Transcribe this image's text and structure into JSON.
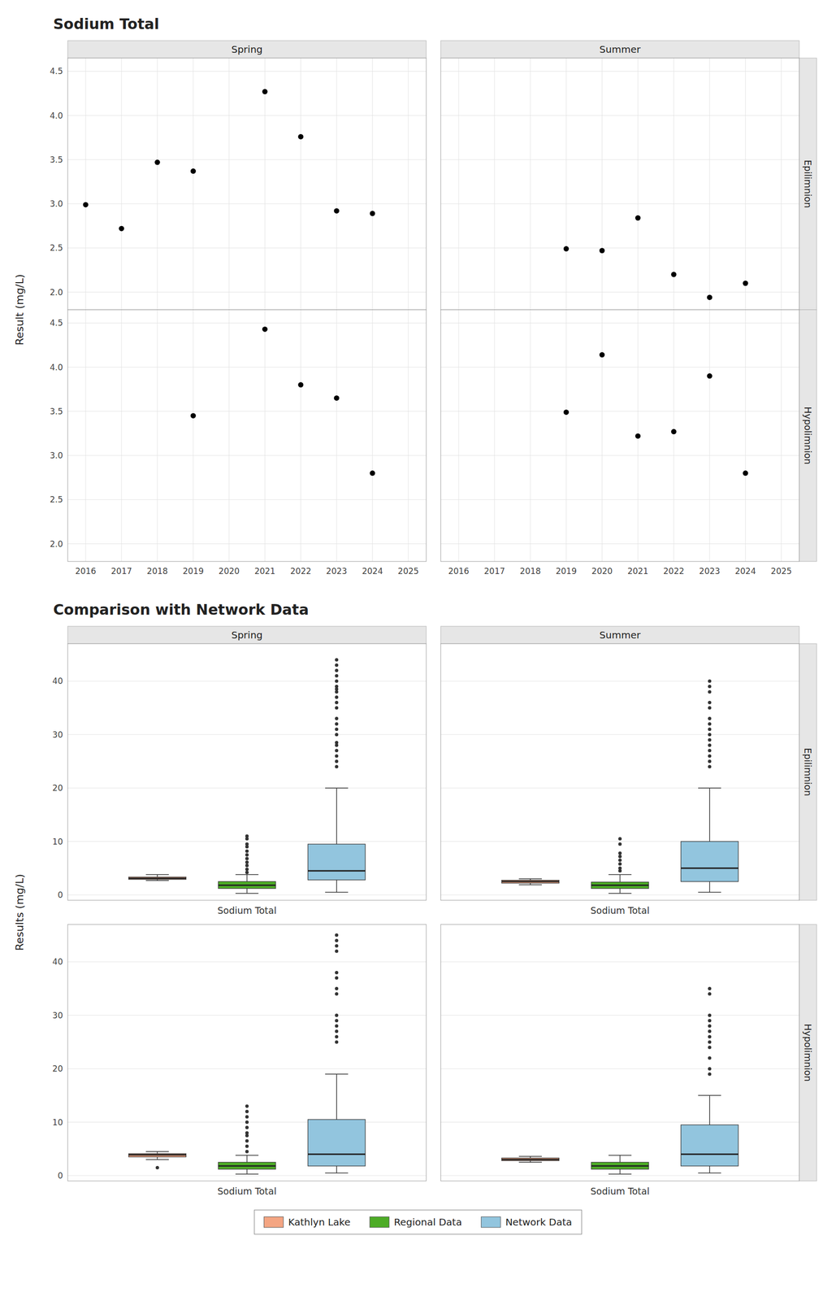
{
  "chart_data": [
    {
      "type": "scatter",
      "title": "Sodium Total",
      "y_label": "Result (mg/L)",
      "color": "black",
      "grid": true,
      "xlim": [
        2015.5,
        2025.5
      ],
      "ylim": [
        1.8,
        4.65
      ],
      "xticks": [
        2016,
        2017,
        2018,
        2019,
        2020,
        2021,
        2022,
        2023,
        2024,
        2025
      ],
      "yticks": [
        {
          "value": 2.0,
          "label": "2.0"
        },
        2.5,
        {
          "value": 3.0,
          "label": "3.0"
        },
        3.5,
        {
          "value": 4.0,
          "label": "4.0"
        },
        4.5
      ],
      "columns": [
        "Spring",
        "Summer"
      ],
      "rows": [
        "Epilimnion",
        "Hypolimnion"
      ],
      "panels": [
        {
          "x": [
            2016,
            2017,
            2018,
            2019,
            2021,
            2022,
            2023,
            2024
          ],
          "values": [
            2.99,
            2.72,
            3.47,
            3.37,
            4.27,
            3.76,
            2.92,
            2.89
          ]
        },
        {
          "x": [
            2019,
            2020,
            2021,
            2022,
            2023,
            2024
          ],
          "values": [
            2.49,
            2.47,
            2.84,
            2.2,
            1.94,
            2.1
          ]
        },
        {
          "x": [
            2019,
            2021,
            2022,
            2023,
            2024
          ],
          "values": [
            3.45,
            4.43,
            3.8,
            3.65,
            2.8
          ]
        },
        {
          "x": [
            2019,
            2020,
            2021,
            2022,
            2023,
            2024
          ],
          "values": [
            3.49,
            4.14,
            3.22,
            3.27,
            3.9,
            2.8
          ]
        }
      ]
    },
    {
      "type": "box",
      "title": "Comparison with Network Data",
      "y_label": "Results (mg/L)",
      "grid": true,
      "legend": "bottom",
      "categories": [
        "Sodium Total"
      ],
      "ylim": [
        -1,
        47
      ],
      "yticks": [
        0,
        10,
        20,
        30,
        40
      ],
      "columns": [
        "Spring",
        "Summer"
      ],
      "rows": [
        "Epilimnion",
        "Hypolimnion"
      ],
      "series": [
        {
          "name": "Kathlyn Lake",
          "color": "#F4A582"
        },
        {
          "name": "Regional Data",
          "color": "#4DAC26"
        },
        {
          "name": "Network Data",
          "color": "#92C5DE"
        }
      ],
      "panels": [
        {
          "series": [
            {
              "median": 3.1,
              "q1": 2.9,
              "q3": 3.35,
              "whislo": 2.7,
              "whishi": 3.8,
              "fliers": []
            },
            {
              "median": 1.8,
              "q1": 1.2,
              "q3": 2.5,
              "whislo": 0.3,
              "whishi": 3.8,
              "fliers": [
                4.2,
                4.8,
                5.5,
                6.1,
                6.8,
                7.5,
                8.2,
                9.0,
                9.5,
                10.5,
                11.0
              ]
            },
            {
              "median": 4.5,
              "q1": 2.8,
              "q3": 9.5,
              "whislo": 0.5,
              "whishi": 20.0,
              "fliers": [
                24.0,
                25.0,
                26.0,
                27.0,
                28.0,
                28.5,
                30.0,
                31.0,
                32.0,
                33.0,
                35.0,
                36.0,
                37.0,
                38.0,
                38.5,
                39.0,
                40.0,
                41.0,
                42.0,
                43.0,
                44.0
              ]
            }
          ]
        },
        {
          "series": [
            {
              "median": 2.5,
              "q1": 2.2,
              "q3": 2.75,
              "whislo": 1.9,
              "whishi": 3.0,
              "fliers": []
            },
            {
              "median": 1.8,
              "q1": 1.2,
              "q3": 2.4,
              "whislo": 0.3,
              "whishi": 3.8,
              "fliers": [
                4.5,
                5.0,
                5.8,
                6.5,
                7.2,
                7.8,
                9.5,
                10.5
              ]
            },
            {
              "median": 5.0,
              "q1": 2.5,
              "q3": 10.0,
              "whislo": 0.5,
              "whishi": 20.0,
              "fliers": [
                24.0,
                25.0,
                26.0,
                27.0,
                28.0,
                29.0,
                30.0,
                31.0,
                32.0,
                33.0,
                35.0,
                36.0,
                38.0,
                39.0,
                40.0
              ]
            }
          ]
        },
        {
          "series": [
            {
              "median": 3.9,
              "q1": 3.5,
              "q3": 4.1,
              "whislo": 3.0,
              "whishi": 4.5,
              "fliers": [
                1.5
              ]
            },
            {
              "median": 1.8,
              "q1": 1.2,
              "q3": 2.5,
              "whislo": 0.3,
              "whishi": 3.8,
              "fliers": [
                4.5,
                5.5,
                6.5,
                7.5,
                8.0,
                9.0,
                10.0,
                11.0,
                12.0,
                13.0
              ]
            },
            {
              "median": 4.0,
              "q1": 1.8,
              "q3": 10.5,
              "whislo": 0.5,
              "whishi": 19.0,
              "fliers": [
                25.0,
                26.0,
                27.0,
                28.0,
                29.0,
                30.0,
                34.0,
                35.0,
                37.0,
                38.0,
                42.0,
                43.0,
                44.0,
                45.0
              ]
            }
          ]
        },
        {
          "series": [
            {
              "median": 3.0,
              "q1": 2.8,
              "q3": 3.3,
              "whislo": 2.5,
              "whishi": 3.6,
              "fliers": []
            },
            {
              "median": 1.8,
              "q1": 1.2,
              "q3": 2.5,
              "whislo": 0.3,
              "whishi": 3.8,
              "fliers": []
            },
            {
              "median": 4.0,
              "q1": 1.8,
              "q3": 9.5,
              "whislo": 0.5,
              "whishi": 15.0,
              "fliers": [
                19.0,
                20.0,
                22.0,
                24.0,
                25.0,
                26.0,
                27.0,
                28.0,
                29.0,
                30.0,
                34.0,
                35.0
              ]
            }
          ]
        }
      ]
    }
  ]
}
